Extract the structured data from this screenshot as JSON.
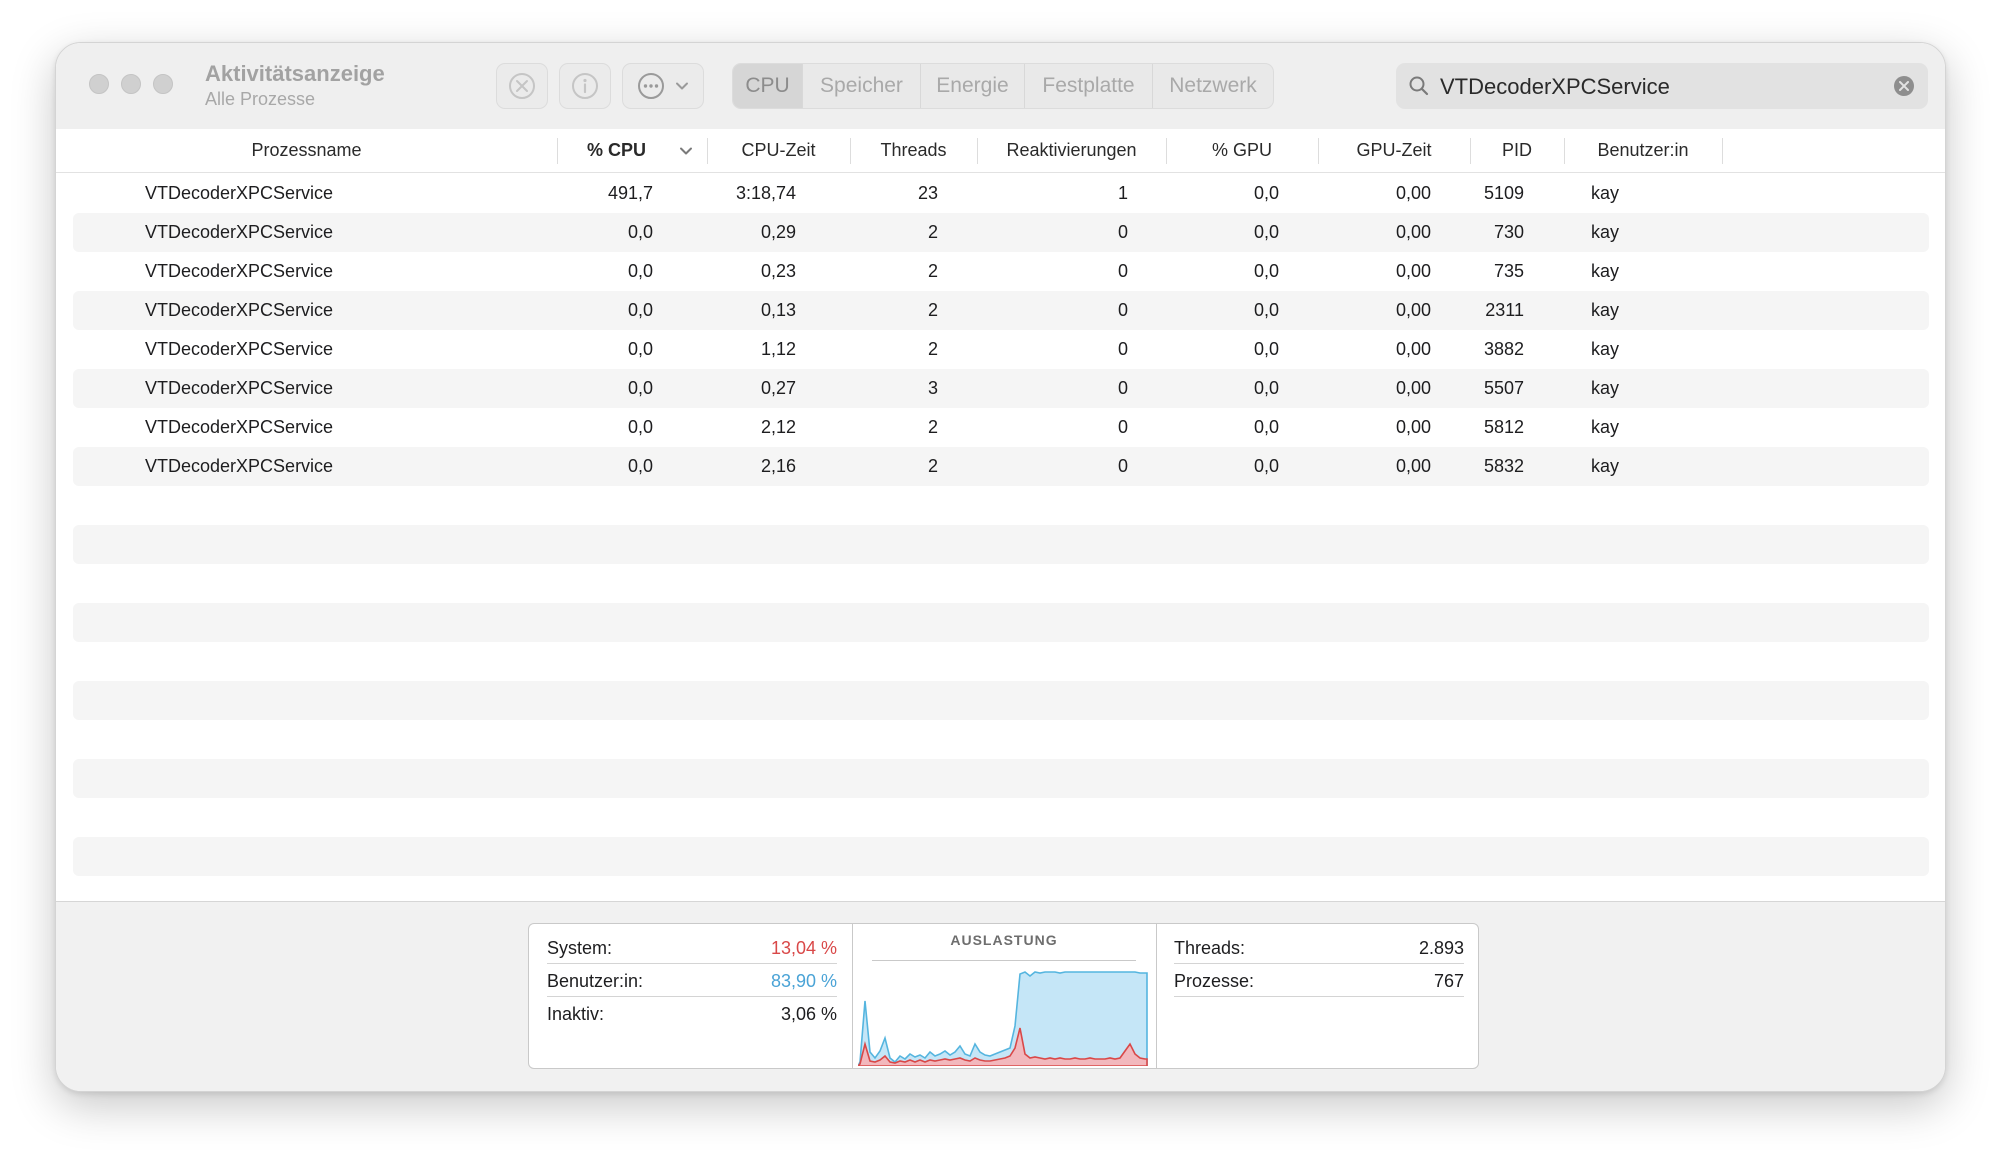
{
  "window": {
    "title": "Aktivitätsanzeige",
    "subtitle": "Alle Prozesse"
  },
  "toolbar": {
    "stop_icon": "stop-process-icon",
    "info_icon": "info-icon",
    "more_icon": "ellipsis-circle-icon",
    "tabs": [
      {
        "label": "CPU",
        "active": true
      },
      {
        "label": "Speicher",
        "active": false
      },
      {
        "label": "Energie",
        "active": false
      },
      {
        "label": "Festplatte",
        "active": false
      },
      {
        "label": "Netzwerk",
        "active": false
      }
    ]
  },
  "search": {
    "value": "VTDecoderXPCService",
    "icon": "magnifier-icon",
    "clear_icon": "clear-circle-icon"
  },
  "table": {
    "columns": [
      "Prozessname",
      "% CPU",
      "CPU-Zeit",
      "Threads",
      "Reaktivierungen",
      "% GPU",
      "GPU-Zeit",
      "PID",
      "Benutzer:in"
    ],
    "sort_column": "% CPU",
    "rows": [
      [
        "VTDecoderXPCService",
        "491,7",
        "3:18,74",
        "23",
        "1",
        "0,0",
        "0,00",
        "5109",
        "kay"
      ],
      [
        "VTDecoderXPCService",
        "0,0",
        "0,29",
        "2",
        "0",
        "0,0",
        "0,00",
        "730",
        "kay"
      ],
      [
        "VTDecoderXPCService",
        "0,0",
        "0,23",
        "2",
        "0",
        "0,0",
        "0,00",
        "735",
        "kay"
      ],
      [
        "VTDecoderXPCService",
        "0,0",
        "0,13",
        "2",
        "0",
        "0,0",
        "0,00",
        "2311",
        "kay"
      ],
      [
        "VTDecoderXPCService",
        "0,0",
        "1,12",
        "2",
        "0",
        "0,0",
        "0,00",
        "3882",
        "kay"
      ],
      [
        "VTDecoderXPCService",
        "0,0",
        "0,27",
        "3",
        "0",
        "0,0",
        "0,00",
        "5507",
        "kay"
      ],
      [
        "VTDecoderXPCService",
        "0,0",
        "2,12",
        "2",
        "0",
        "0,0",
        "0,00",
        "5812",
        "kay"
      ],
      [
        "VTDecoderXPCService",
        "0,0",
        "2,16",
        "2",
        "0",
        "0,0",
        "0,00",
        "5832",
        "kay"
      ]
    ]
  },
  "summary": {
    "system_label": "System:",
    "system_value": "13,04 %",
    "system_color": "#d94848",
    "user_label": "Benutzer:in:",
    "user_value": "83,90 %",
    "user_color": "#4aa3d6",
    "idle_label": "Inaktiv:",
    "idle_value": "3,06 %",
    "graph_title": "AUSLASTUNG",
    "threads_label": "Threads:",
    "threads_value": "2.893",
    "processes_label": "Prozesse:",
    "processes_value": "767"
  }
}
